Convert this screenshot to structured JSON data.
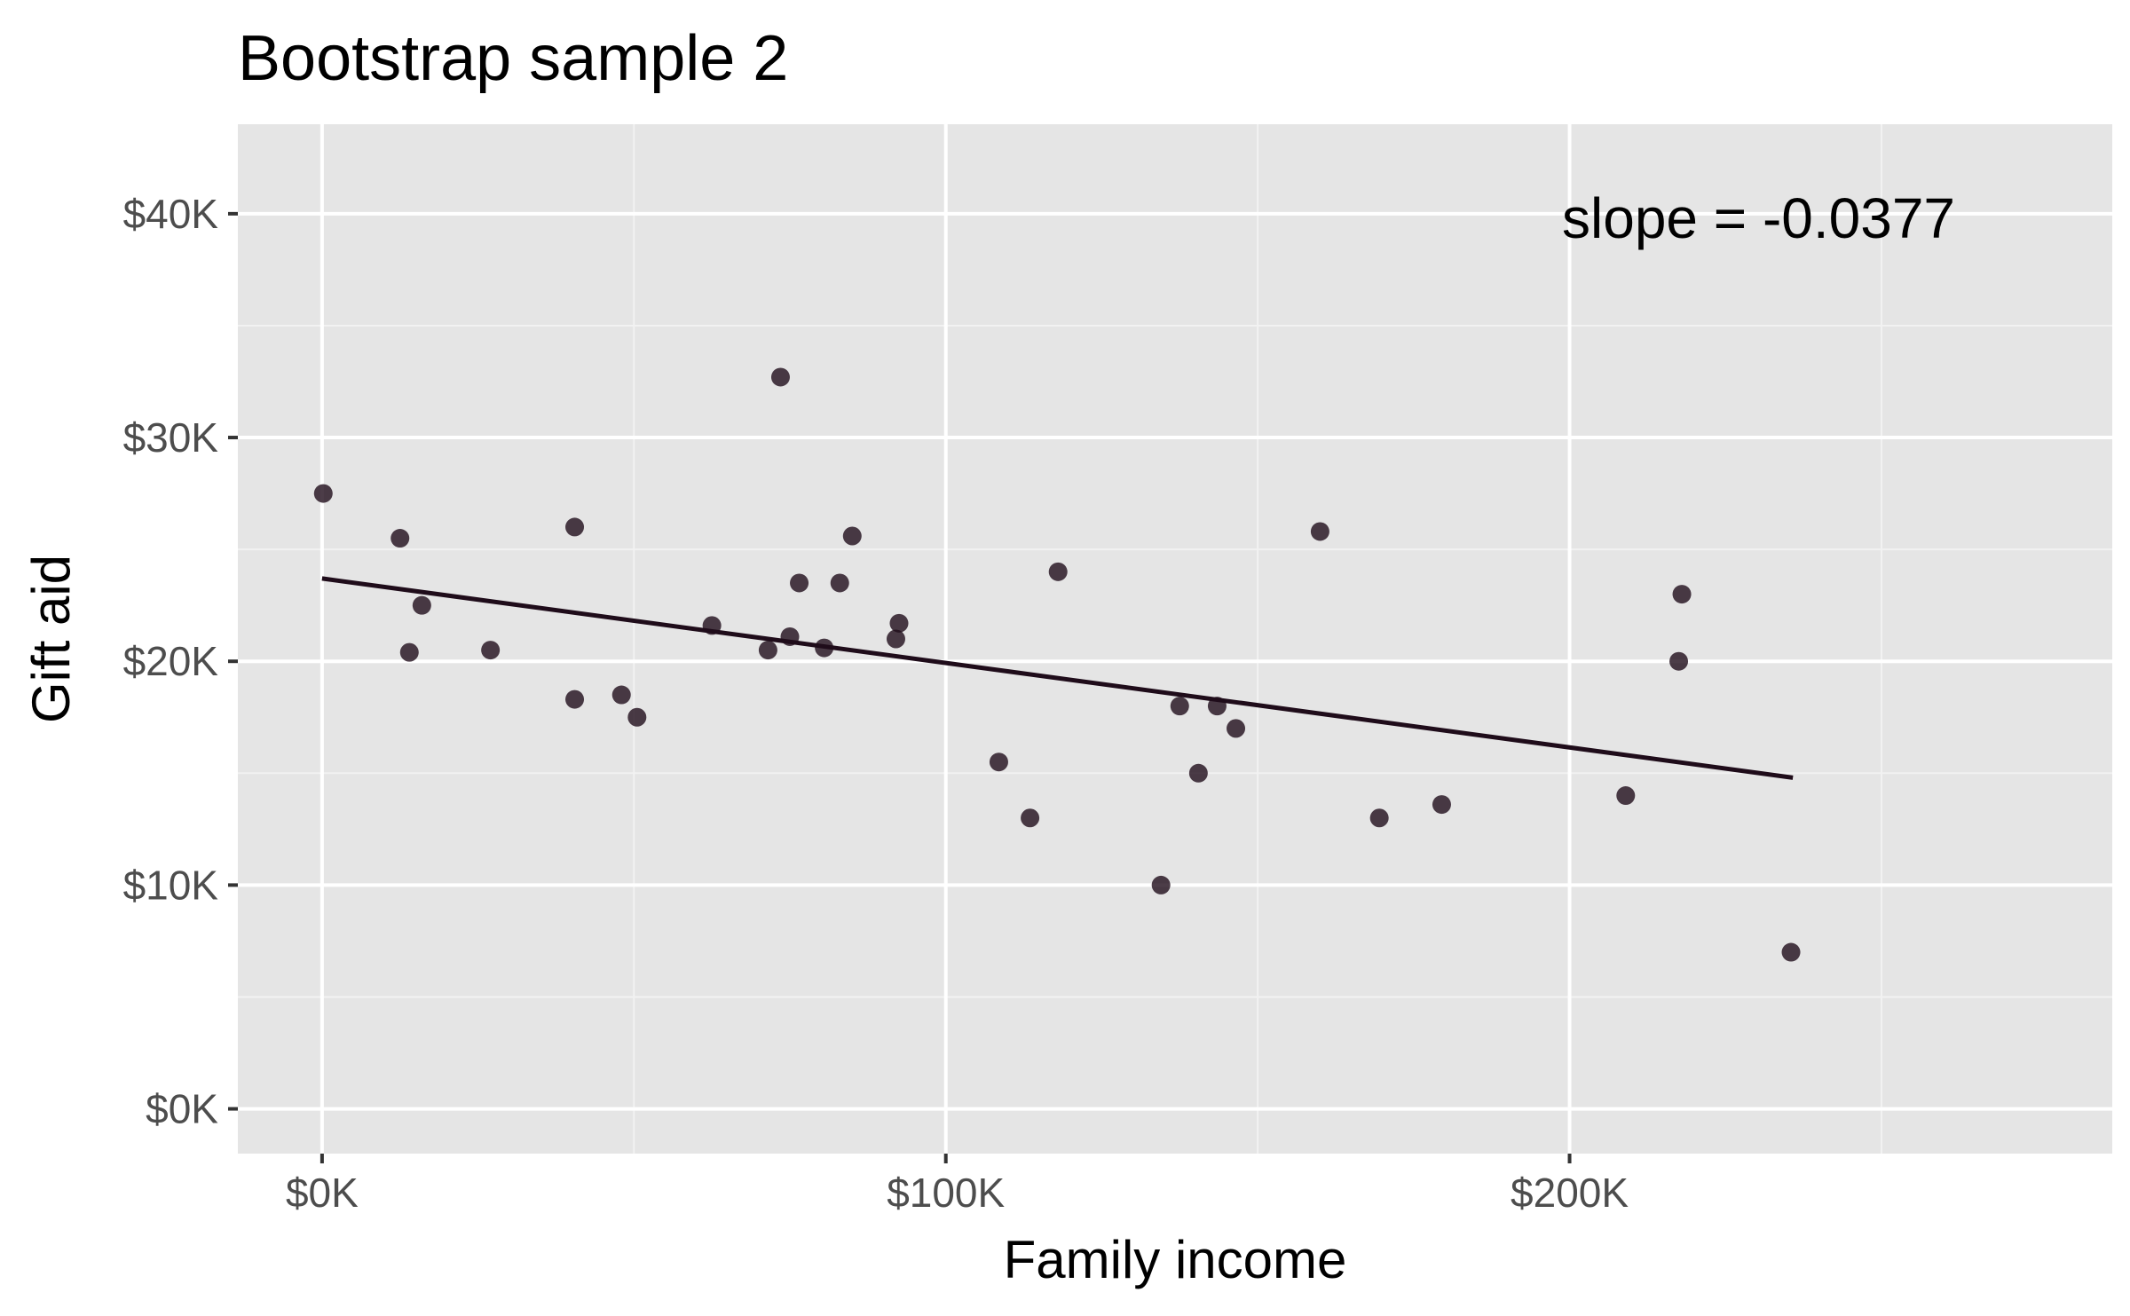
{
  "chart_data": {
    "type": "scatter",
    "title": "Bootstrap sample 2",
    "xlabel": "Family income",
    "ylabel": "Gift aid",
    "xlim": [
      -13500,
      287000
    ],
    "ylim": [
      -2000,
      44000
    ],
    "x_ticks": [
      0,
      100000,
      200000
    ],
    "x_tick_labels": [
      "$0K",
      "$100K",
      "$200K"
    ],
    "y_ticks": [
      0,
      10000,
      20000,
      30000,
      40000
    ],
    "y_tick_labels": [
      "$0K",
      "$10K",
      "$20K",
      "$30K",
      "$40K"
    ],
    "grid": true,
    "point_color": "#1f0c1a",
    "line_color": "#1f0c1a",
    "panel_background": "#e5e5e5",
    "annotation": "slope = -0.0377",
    "fit_line": {
      "x": [
        0,
        235800
      ],
      "y": [
        23700,
        14800
      ]
    },
    "points": [
      {
        "x": 200,
        "y": 27500
      },
      {
        "x": 12500,
        "y": 25500
      },
      {
        "x": 14000,
        "y": 20400
      },
      {
        "x": 16000,
        "y": 22500
      },
      {
        "x": 27000,
        "y": 20500
      },
      {
        "x": 40500,
        "y": 26000
      },
      {
        "x": 40500,
        "y": 18300
      },
      {
        "x": 48000,
        "y": 18500
      },
      {
        "x": 50500,
        "y": 17500
      },
      {
        "x": 62500,
        "y": 21600
      },
      {
        "x": 71500,
        "y": 20500
      },
      {
        "x": 73500,
        "y": 32700
      },
      {
        "x": 75000,
        "y": 21100
      },
      {
        "x": 76500,
        "y": 23500
      },
      {
        "x": 80500,
        "y": 20600
      },
      {
        "x": 83000,
        "y": 23500
      },
      {
        "x": 85000,
        "y": 25600
      },
      {
        "x": 92000,
        "y": 21000
      },
      {
        "x": 92500,
        "y": 21700
      },
      {
        "x": 108500,
        "y": 15500
      },
      {
        "x": 113500,
        "y": 13000
      },
      {
        "x": 118000,
        "y": 24000
      },
      {
        "x": 134500,
        "y": 10000
      },
      {
        "x": 137500,
        "y": 18000
      },
      {
        "x": 140500,
        "y": 15000
      },
      {
        "x": 143500,
        "y": 18000
      },
      {
        "x": 146500,
        "y": 17000
      },
      {
        "x": 160000,
        "y": 25800
      },
      {
        "x": 169500,
        "y": 13000
      },
      {
        "x": 179500,
        "y": 13600
      },
      {
        "x": 209000,
        "y": 14000
      },
      {
        "x": 217500,
        "y": 20000
      },
      {
        "x": 218000,
        "y": 23000
      },
      {
        "x": 235500,
        "y": 7000
      }
    ]
  }
}
